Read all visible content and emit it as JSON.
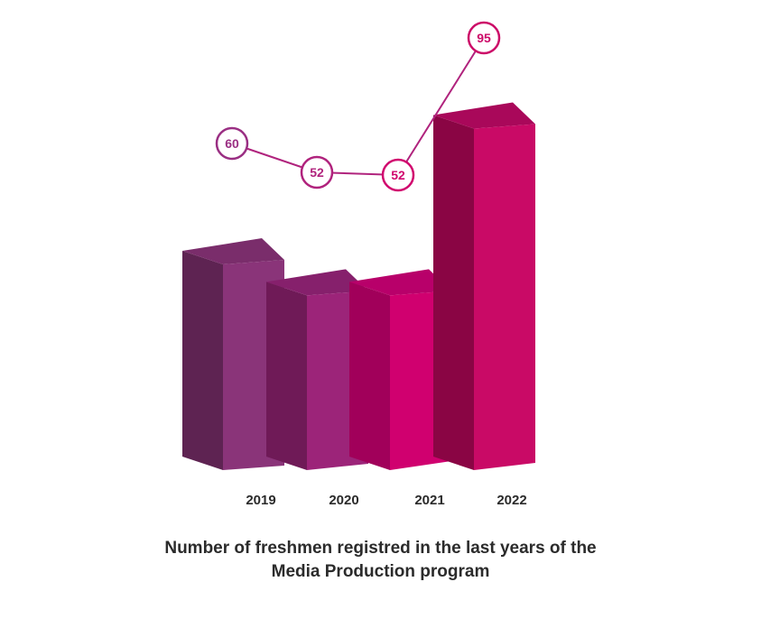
{
  "chart_data": {
    "type": "bar",
    "categories": [
      "2019",
      "2020",
      "2021",
      "2022"
    ],
    "values": [
      60,
      52,
      52,
      95
    ],
    "data_labels": [
      "60",
      "52",
      "52",
      "95"
    ],
    "title_lines": [
      "Number of freshmen registred in the last years of the",
      "Media Production program"
    ],
    "xlabel": "",
    "ylabel": "",
    "ylim": [
      0,
      100
    ],
    "grid": false,
    "legend": "none",
    "style": "3d-bars-with-line-overlay",
    "colors": {
      "bars_front": [
        "#8a3479",
        "#9c2479",
        "#d0006f",
        "#c90a66"
      ],
      "bars_side": [
        "#5e2352",
        "#6f1a57",
        "#a1005a",
        "#8a0544"
      ],
      "bars_top": [
        "#7a2d6b",
        "#86206c",
        "#b8006a",
        "#a9085a"
      ],
      "marker_colors": [
        "#9a2f83",
        "#b0237d",
        "#d1066e",
        "#cc0a68"
      ],
      "line": "#b0237d",
      "label_fill": "#ffffff",
      "tick_text": "#2b2b2b"
    }
  }
}
